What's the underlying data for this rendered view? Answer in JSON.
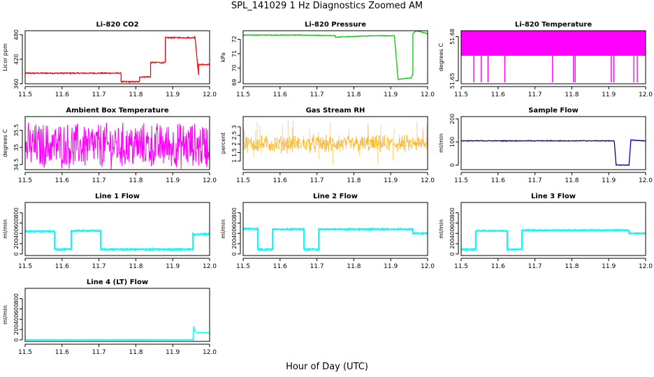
{
  "title": "SPL_141029  1 Hz Diagnostics Zoomed AM",
  "xlabel": "Hour of Day (UTC)",
  "chart_data": [
    {
      "type": "line",
      "title": "Li-820 CO2",
      "ylabel": "Licor ppm",
      "color": "#ff0000",
      "xlim": [
        11.5,
        12.0
      ],
      "ylim": [
        360,
        490
      ],
      "yticks": [
        360,
        420,
        480
      ],
      "xticks": [
        11.5,
        11.6,
        11.7,
        11.8,
        11.9,
        12.0
      ],
      "noise": 1.5,
      "series": [
        {
          "x": [
            11.5,
            11.76,
            11.76,
            11.81,
            11.81,
            11.84,
            11.84,
            11.88,
            11.88,
            11.96,
            11.96,
            11.97,
            11.97,
            12.0
          ],
          "y": [
            386,
            386,
            365,
            365,
            377,
            377,
            412,
            412,
            473,
            473,
            478,
            383,
            407,
            407
          ]
        }
      ]
    },
    {
      "type": "line",
      "title": "Li-820 Pressure",
      "ylabel": "kPa",
      "color": "#00cc00",
      "xlim": [
        11.5,
        12.0
      ],
      "ylim": [
        68.9,
        72.6
      ],
      "yticks": [
        69,
        70,
        71,
        72
      ],
      "xticks": [
        11.5,
        11.6,
        11.7,
        11.8,
        11.9,
        12.0
      ],
      "noise": 0.02,
      "series": [
        {
          "x": [
            11.5,
            11.65,
            11.75,
            11.75,
            11.85,
            11.91,
            11.92,
            11.93,
            11.95,
            11.955,
            11.96,
            11.96,
            11.97,
            12.0
          ],
          "y": [
            72.3,
            72.3,
            72.25,
            72.15,
            72.25,
            72.25,
            69.2,
            69.25,
            69.3,
            69.3,
            69.6,
            72.4,
            72.6,
            72.4
          ]
        }
      ]
    },
    {
      "type": "line",
      "title": "Li-820 Temperature",
      "ylabel": "degrees C",
      "color": "#ff00ff",
      "xlim": [
        11.5,
        12.0
      ],
      "ylim": [
        51.648,
        51.684
      ],
      "yticks": [
        51.65,
        51.68
      ],
      "xticks": [
        11.5,
        11.6,
        11.7,
        11.8,
        11.9,
        12.0
      ],
      "noise": 0,
      "band": {
        "low": 51.667,
        "high": 51.684,
        "dip": 51.649,
        "dip_density": 0.04
      }
    },
    {
      "type": "line",
      "title": "Ambient Box Temperature",
      "ylabel": "degrees C",
      "color": "#ff00ff",
      "xlim": [
        11.5,
        12.0
      ],
      "ylim": [
        34.35,
        35.9
      ],
      "yticks": [
        34.5,
        35.0,
        35.5
      ],
      "xticks": [
        11.5,
        11.6,
        11.7,
        11.8,
        11.9,
        12.0
      ],
      "noise": 0,
      "band": {
        "low": 34.55,
        "high": 35.65,
        "mid": 35.05,
        "jitter": 0.25
      }
    },
    {
      "type": "line",
      "title": "Gas Stream RH",
      "ylabel": "percent",
      "color": "#ffa500",
      "xlim": [
        11.5,
        12.0
      ],
      "ylim": [
        0.5,
        3.6
      ],
      "yticks": [
        1.0,
        1.5,
        2.0,
        2.5,
        3.0
      ],
      "xticks": [
        11.5,
        11.6,
        11.7,
        11.8,
        11.9,
        12.0
      ],
      "noise": 0,
      "band": {
        "low": 1.6,
        "high": 2.4,
        "mid": 2.0,
        "jitter": 0.35,
        "dots": true
      }
    },
    {
      "type": "line",
      "title": "Sample Flow",
      "ylabel": "ml/min",
      "color": "#0000cc",
      "xlim": [
        11.5,
        12.0
      ],
      "ylim": [
        -20,
        210
      ],
      "yticks": [
        0,
        100,
        200
      ],
      "xticks": [
        11.5,
        11.6,
        11.7,
        11.8,
        11.9,
        12.0
      ],
      "noise": 1.5,
      "series": [
        {
          "x": [
            11.5,
            11.915,
            11.92,
            11.955,
            11.96,
            12.0
          ],
          "y": [
            105,
            105,
            0,
            0,
            108,
            105
          ]
        }
      ]
    },
    {
      "type": "line",
      "title": "Line 1 Flow",
      "ylabel": "ml/min",
      "color": "#00ffff",
      "xlim": [
        11.5,
        12.0
      ],
      "ylim": [
        -30,
        1000
      ],
      "yticks": [
        0,
        200,
        400,
        600,
        800
      ],
      "xticks": [
        11.5,
        11.6,
        11.7,
        11.8,
        11.9,
        12.0
      ],
      "noise": 10,
      "series": [
        {
          "x": [
            11.5,
            11.58,
            11.58,
            11.625,
            11.625,
            11.705,
            11.705,
            11.955,
            11.955,
            12.0
          ],
          "y": [
            440,
            440,
            90,
            90,
            450,
            450,
            90,
            90,
            380,
            390
          ]
        }
      ]
    },
    {
      "type": "line",
      "title": "Line 2 Flow",
      "ylabel": "ml/min",
      "color": "#00ffff",
      "xlim": [
        11.5,
        12.0
      ],
      "ylim": [
        -30,
        1000
      ],
      "yticks": [
        0,
        200,
        400,
        600,
        800
      ],
      "xticks": [
        11.5,
        11.6,
        11.7,
        11.8,
        11.9,
        12.0
      ],
      "noise": 10,
      "series": [
        {
          "x": [
            11.5,
            11.54,
            11.54,
            11.58,
            11.58,
            11.665,
            11.665,
            11.705,
            11.705,
            11.96,
            11.96,
            12.0
          ],
          "y": [
            490,
            490,
            90,
            90,
            480,
            480,
            90,
            90,
            480,
            480,
            400,
            400
          ]
        }
      ]
    },
    {
      "type": "line",
      "title": "Line 3 Flow",
      "ylabel": "ml/min",
      "color": "#00ffff",
      "xlim": [
        11.5,
        12.0
      ],
      "ylim": [
        -30,
        1000
      ],
      "yticks": [
        0,
        200,
        400,
        600,
        800
      ],
      "xticks": [
        11.5,
        11.6,
        11.7,
        11.8,
        11.9,
        12.0
      ],
      "noise": 8,
      "series": [
        {
          "x": [
            11.5,
            11.54,
            11.54,
            11.625,
            11.625,
            11.665,
            11.665,
            11.955,
            11.955,
            12.0
          ],
          "y": [
            90,
            90,
            450,
            450,
            90,
            90,
            460,
            460,
            400,
            400
          ]
        }
      ]
    },
    {
      "type": "line",
      "title": "Line 4 (LT) Flow",
      "ylabel": "ml/min",
      "color": "#00ffff",
      "xlim": [
        11.5,
        12.0
      ],
      "ylim": [
        -30,
        1000
      ],
      "yticks": [
        0,
        200,
        400,
        600,
        800
      ],
      "xticks": [
        11.5,
        11.6,
        11.7,
        11.8,
        11.9,
        12.0
      ],
      "noise": 2,
      "series": [
        {
          "x": [
            11.5,
            11.955,
            11.957,
            11.96,
            11.965,
            12.0
          ],
          "y": [
            5,
            5,
            270,
            170,
            140,
            140
          ]
        }
      ]
    }
  ]
}
